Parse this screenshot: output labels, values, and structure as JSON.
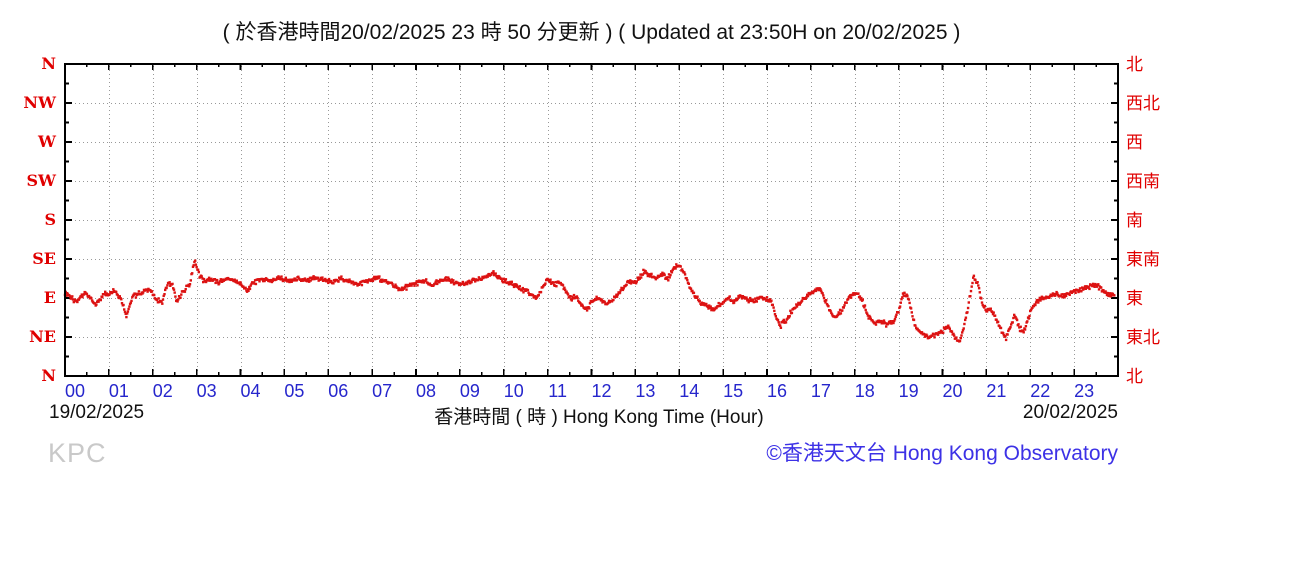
{
  "title": "( 於香港時間20/02/2025 23 時 50 分更新 ) ( Updated at 23:50H on 20/02/2025 )",
  "watermark": "KPC",
  "footer": {
    "date_left": "19/02/2025",
    "date_right": "20/02/2025",
    "xaxis_label": "香港時間 ( 時 )  Hong Kong Time (Hour)",
    "copyright": "©香港天文台 Hong Kong Observatory"
  },
  "colors": {
    "data_red": "#DC1212",
    "axis_label_red": "#E00000",
    "hour_label_blue": "#2626CC",
    "copyright_blue": "#3C31E6",
    "watermark_gray": "#C9C9C9",
    "grid_gray": "#999999",
    "axis_black": "#000000"
  },
  "chart_data": {
    "type": "scatter",
    "title": "( 於香港時間20/02/2025 23 時 50 分更新 ) ( Updated at 23:50H on 20/02/2025 )",
    "x": {
      "label": "香港時間 ( 時 )  Hong Kong Time (Hour)",
      "range": [
        0,
        24
      ],
      "ticks": [
        "00",
        "01",
        "02",
        "03",
        "04",
        "05",
        "06",
        "07",
        "08",
        "09",
        "10",
        "11",
        "12",
        "13",
        "14",
        "15",
        "16",
        "17",
        "18",
        "19",
        "20",
        "21",
        "22",
        "23"
      ],
      "date_start": "19/02/2025",
      "date_end": "20/02/2025"
    },
    "y": {
      "unit": "wind direction (degrees, compass points)",
      "range": [
        0,
        360
      ],
      "left_labels": [
        "N",
        "NW",
        "W",
        "SW",
        "S",
        "SE",
        "E",
        "NE",
        "N"
      ],
      "right_labels": [
        "北",
        "西北",
        "西",
        "西南",
        "南",
        "東南",
        "東",
        "東北",
        "北"
      ],
      "levels_degrees": [
        360,
        315,
        270,
        225,
        180,
        135,
        90,
        45,
        0
      ]
    },
    "grid": true,
    "legend": false,
    "series": [
      {
        "name": "wind_direction",
        "marker": "square",
        "color": "#DC1212",
        "points": [
          [
            0.0,
            97
          ],
          [
            0.1,
            92
          ],
          [
            0.27,
            85
          ],
          [
            0.45,
            97
          ],
          [
            0.6,
            88
          ],
          [
            0.7,
            82
          ],
          [
            0.85,
            93
          ],
          [
            1.0,
            96
          ],
          [
            1.1,
            99
          ],
          [
            1.25,
            92
          ],
          [
            1.4,
            71
          ],
          [
            1.55,
            92
          ],
          [
            1.7,
            95
          ],
          [
            1.9,
            101
          ],
          [
            2.05,
            90
          ],
          [
            2.2,
            84
          ],
          [
            2.35,
            108
          ],
          [
            2.45,
            105
          ],
          [
            2.55,
            86
          ],
          [
            2.7,
            98
          ],
          [
            2.85,
            106
          ],
          [
            2.95,
            133
          ],
          [
            3.05,
            118
          ],
          [
            3.15,
            110
          ],
          [
            3.3,
            112
          ],
          [
            3.5,
            108
          ],
          [
            3.7,
            112
          ],
          [
            3.9,
            109
          ],
          [
            4.05,
            105
          ],
          [
            4.15,
            98
          ],
          [
            4.3,
            108
          ],
          [
            4.5,
            112
          ],
          [
            4.7,
            110
          ],
          [
            4.9,
            113
          ],
          [
            5.1,
            109
          ],
          [
            5.3,
            112
          ],
          [
            5.5,
            110
          ],
          [
            5.7,
            113
          ],
          [
            5.9,
            111
          ],
          [
            6.1,
            108
          ],
          [
            6.3,
            112
          ],
          [
            6.5,
            109
          ],
          [
            6.7,
            106
          ],
          [
            6.9,
            110
          ],
          [
            7.1,
            113
          ],
          [
            7.3,
            110
          ],
          [
            7.5,
            104
          ],
          [
            7.65,
            100
          ],
          [
            7.8,
            103
          ],
          [
            8.0,
            107
          ],
          [
            8.2,
            110
          ],
          [
            8.35,
            104
          ],
          [
            8.5,
            108
          ],
          [
            8.7,
            112
          ],
          [
            8.9,
            108
          ],
          [
            9.1,
            106
          ],
          [
            9.3,
            110
          ],
          [
            9.5,
            112
          ],
          [
            9.75,
            120
          ],
          [
            9.9,
            112
          ],
          [
            10.1,
            108
          ],
          [
            10.3,
            104
          ],
          [
            10.5,
            98
          ],
          [
            10.75,
            90
          ],
          [
            10.9,
            103
          ],
          [
            11.0,
            112
          ],
          [
            11.15,
            105
          ],
          [
            11.3,
            108
          ],
          [
            11.45,
            95
          ],
          [
            11.55,
            88
          ],
          [
            11.65,
            92
          ],
          [
            11.75,
            82
          ],
          [
            11.9,
            76
          ],
          [
            12.0,
            85
          ],
          [
            12.1,
            90
          ],
          [
            12.2,
            88
          ],
          [
            12.35,
            82
          ],
          [
            12.5,
            88
          ],
          [
            12.6,
            95
          ],
          [
            12.75,
            103
          ],
          [
            12.9,
            110
          ],
          [
            13.0,
            108
          ],
          [
            13.1,
            115
          ],
          [
            13.2,
            120
          ],
          [
            13.35,
            116
          ],
          [
            13.5,
            112
          ],
          [
            13.6,
            118
          ],
          [
            13.75,
            113
          ],
          [
            13.9,
            126
          ],
          [
            14.0,
            128
          ],
          [
            14.1,
            120
          ],
          [
            14.2,
            108
          ],
          [
            14.35,
            93
          ],
          [
            14.5,
            84
          ],
          [
            14.65,
            80
          ],
          [
            14.8,
            78
          ],
          [
            14.95,
            84
          ],
          [
            15.1,
            90
          ],
          [
            15.25,
            86
          ],
          [
            15.4,
            92
          ],
          [
            15.55,
            88
          ],
          [
            15.7,
            86
          ],
          [
            15.85,
            90
          ],
          [
            16.0,
            89
          ],
          [
            16.1,
            86
          ],
          [
            16.2,
            70
          ],
          [
            16.3,
            58
          ],
          [
            16.45,
            65
          ],
          [
            16.6,
            78
          ],
          [
            16.75,
            85
          ],
          [
            16.9,
            92
          ],
          [
            17.05,
            97
          ],
          [
            17.2,
            101
          ],
          [
            17.35,
            85
          ],
          [
            17.5,
            70
          ],
          [
            17.6,
            68
          ],
          [
            17.75,
            80
          ],
          [
            17.9,
            92
          ],
          [
            18.05,
            96
          ],
          [
            18.15,
            90
          ],
          [
            18.3,
            70
          ],
          [
            18.45,
            60
          ],
          [
            18.6,
            62
          ],
          [
            18.75,
            60
          ],
          [
            18.9,
            63
          ],
          [
            19.0,
            75
          ],
          [
            19.1,
            93
          ],
          [
            19.2,
            95
          ],
          [
            19.3,
            72
          ],
          [
            19.4,
            55
          ],
          [
            19.55,
            48
          ],
          [
            19.7,
            45
          ],
          [
            19.85,
            48
          ],
          [
            20.0,
            52
          ],
          [
            20.13,
            58
          ],
          [
            20.25,
            46
          ],
          [
            20.4,
            40
          ],
          [
            20.55,
            70
          ],
          [
            20.7,
            114
          ],
          [
            20.8,
            108
          ],
          [
            20.9,
            85
          ],
          [
            21.0,
            76
          ],
          [
            21.1,
            78
          ],
          [
            21.2,
            68
          ],
          [
            21.35,
            52
          ],
          [
            21.45,
            44
          ],
          [
            21.55,
            58
          ],
          [
            21.65,
            70
          ],
          [
            21.75,
            55
          ],
          [
            21.85,
            52
          ],
          [
            21.95,
            65
          ],
          [
            22.05,
            80
          ],
          [
            22.15,
            86
          ],
          [
            22.3,
            90
          ],
          [
            22.45,
            92
          ],
          [
            22.6,
            94
          ],
          [
            22.75,
            92
          ],
          [
            22.9,
            95
          ],
          [
            23.05,
            98
          ],
          [
            23.2,
            100
          ],
          [
            23.35,
            103
          ],
          [
            23.5,
            106
          ],
          [
            23.65,
            98
          ],
          [
            23.8,
            94
          ],
          [
            23.92,
            93
          ]
        ]
      }
    ]
  }
}
